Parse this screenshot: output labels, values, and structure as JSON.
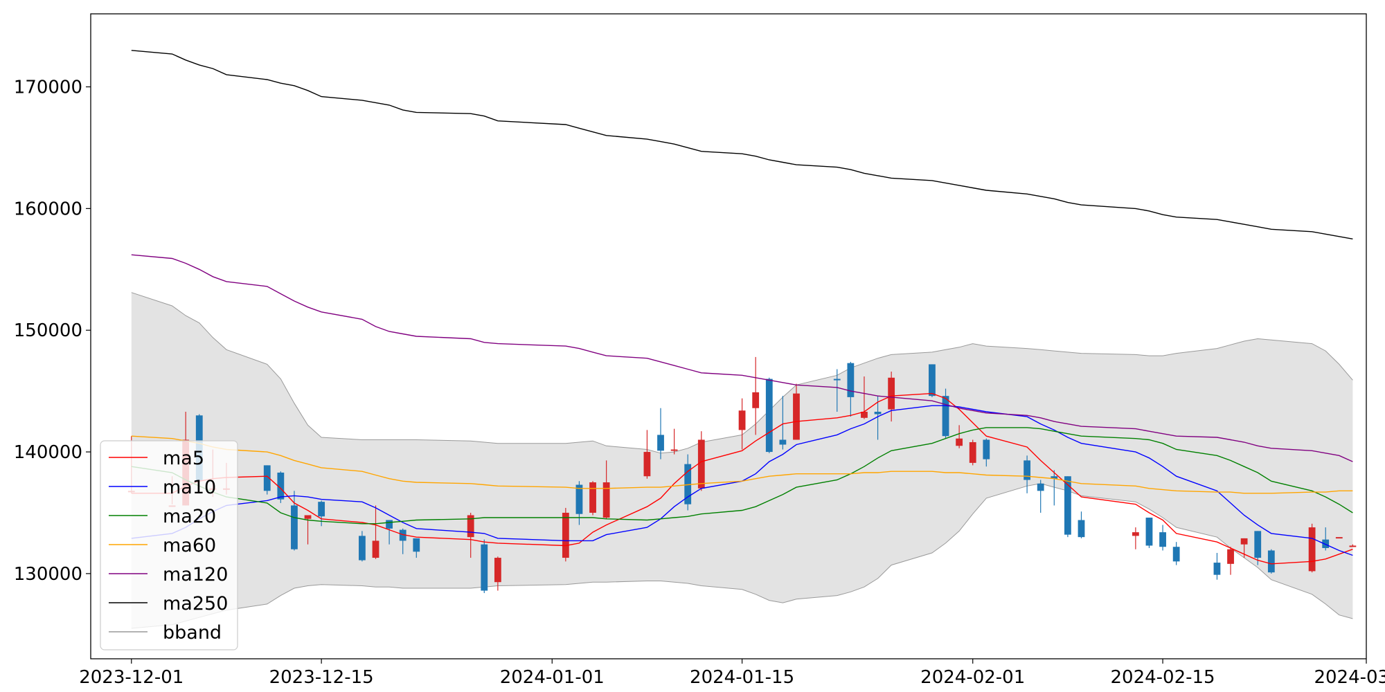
{
  "chart_data": {
    "type": "candlestick",
    "title": "",
    "xlabel": "",
    "ylabel": "",
    "ylim": [
      123000,
      176000
    ],
    "xlim": [
      "2023-11-28",
      "2024-03-01"
    ],
    "grid": false,
    "legend_position": "lower-left",
    "x_ticks": [
      "2023-12-01",
      "2023-12-15",
      "2024-01-01",
      "2024-01-15",
      "2024-02-01",
      "2024-02-15",
      "2024-03-01"
    ],
    "y_ticks": [
      130000,
      140000,
      150000,
      160000,
      170000
    ],
    "y_tick_labels": [
      "130000",
      "140000",
      "150000",
      "160000",
      "170000"
    ],
    "colors": {
      "up": "#d62728",
      "down": "#1f77b4",
      "ma5": "#ff0000",
      "ma10": "#0000ff",
      "ma20": "#008000",
      "ma60": "#ffa500",
      "ma120": "#800080",
      "ma250": "#000000",
      "bband_fill": "#e3e3e3",
      "bband_edge": "#999999"
    },
    "dates": [
      "2023-12-01",
      "2023-12-04",
      "2023-12-05",
      "2023-12-06",
      "2023-12-07",
      "2023-12-08",
      "2023-12-11",
      "2023-12-12",
      "2023-12-13",
      "2023-12-14",
      "2023-12-15",
      "2023-12-18",
      "2023-12-19",
      "2023-12-20",
      "2023-12-21",
      "2023-12-22",
      "2023-12-26",
      "2023-12-27",
      "2023-12-28",
      "2024-01-02",
      "2024-01-03",
      "2024-01-04",
      "2024-01-05",
      "2024-01-08",
      "2024-01-09",
      "2024-01-10",
      "2024-01-11",
      "2024-01-12",
      "2024-01-15",
      "2024-01-16",
      "2024-01-17",
      "2024-01-18",
      "2024-01-19",
      "2024-01-22",
      "2024-01-23",
      "2024-01-24",
      "2024-01-25",
      "2024-01-26",
      "2024-01-29",
      "2024-01-30",
      "2024-01-31",
      "2024-02-01",
      "2024-02-02",
      "2024-02-05",
      "2024-02-06",
      "2024-02-07",
      "2024-02-08",
      "2024-02-09",
      "2024-02-13",
      "2024-02-14",
      "2024-02-15",
      "2024-02-16",
      "2024-02-19",
      "2024-02-20",
      "2024-02-21",
      "2024-02-22",
      "2024-02-23",
      "2024-02-26",
      "2024-02-27",
      "2024-02-28",
      "2024-02-29"
    ],
    "ohlc": [
      [
        136800,
        141300,
        136800,
        136600
      ],
      [
        135600,
        138000,
        135600,
        135700
      ],
      [
        135600,
        143300,
        141000,
        135600
      ],
      [
        143000,
        143100,
        137600,
        137500
      ],
      [
        136900,
        140200,
        137000,
        136300
      ],
      [
        137000,
        139100,
        137000,
        136500
      ],
      [
        138900,
        138900,
        136800,
        136500
      ],
      [
        138300,
        138400,
        136100,
        135800
      ],
      [
        135600,
        136800,
        132000,
        131900
      ],
      [
        134500,
        134800,
        134800,
        132400
      ],
      [
        135900,
        136000,
        134700,
        133900
      ],
      [
        133100,
        133500,
        131100,
        131000
      ],
      [
        131300,
        135600,
        132700,
        131200
      ],
      [
        134400,
        134400,
        133700,
        132400
      ],
      [
        133600,
        133700,
        132700,
        131600
      ],
      [
        132900,
        132900,
        131800,
        131300
      ],
      [
        133000,
        135000,
        134800,
        131300
      ],
      [
        132400,
        132800,
        128600,
        128400
      ],
      [
        129300,
        131400,
        131300,
        128600
      ],
      [
        131300,
        135400,
        135000,
        131000
      ],
      [
        137300,
        137600,
        134900,
        134000
      ],
      [
        135000,
        137600,
        137500,
        134800
      ],
      [
        134600,
        139300,
        137500,
        134500
      ],
      [
        138000,
        141800,
        140000,
        137800
      ],
      [
        141400,
        143600,
        140100,
        139400
      ],
      [
        140200,
        141900,
        140200,
        139800
      ],
      [
        139000,
        139800,
        135700,
        135200
      ],
      [
        137000,
        141700,
        141000,
        136800
      ],
      [
        141800,
        144400,
        143400,
        140200
      ],
      [
        143600,
        147800,
        144900,
        141400
      ],
      [
        146000,
        146100,
        140000,
        139900
      ],
      [
        141000,
        144600,
        140600,
        140200
      ],
      [
        141000,
        145600,
        144800,
        141000
      ],
      [
        146000,
        146800,
        145900,
        143300
      ],
      [
        147300,
        147400,
        144500,
        142900
      ],
      [
        142800,
        146200,
        143300,
        142700
      ],
      [
        143300,
        144600,
        143100,
        141000
      ],
      [
        143500,
        146600,
        146100,
        142500
      ],
      [
        147200,
        147200,
        144600,
        144500
      ],
      [
        144600,
        145200,
        141300,
        141100
      ],
      [
        140500,
        142200,
        141100,
        140300
      ],
      [
        139100,
        141000,
        140800,
        138900
      ],
      [
        141000,
        141100,
        139400,
        138800
      ],
      [
        139300,
        139700,
        137700,
        136600
      ],
      [
        137400,
        137700,
        136800,
        135000
      ],
      [
        138000,
        138500,
        137800,
        135600
      ],
      [
        138000,
        138000,
        133200,
        133000
      ],
      [
        134400,
        135100,
        133000,
        132900
      ],
      [
        133100,
        133800,
        133400,
        132000
      ],
      [
        134600,
        134600,
        132300,
        132100
      ],
      [
        133400,
        134000,
        132200,
        131900
      ],
      [
        132200,
        132600,
        131000,
        130700
      ],
      [
        130900,
        131700,
        129900,
        129500
      ],
      [
        130800,
        132200,
        132000,
        129900
      ],
      [
        132400,
        132900,
        132900,
        131300
      ],
      [
        133500,
        133500,
        131300,
        130700
      ],
      [
        131900,
        132000,
        130100,
        130000
      ],
      [
        130200,
        134100,
        133800,
        130100
      ],
      [
        132800,
        133800,
        132100,
        131900
      ],
      [
        133000,
        133000,
        133000,
        133000
      ],
      [
        132300,
        132400,
        132300,
        132200
      ]
    ],
    "series": [
      {
        "name": "ma5",
        "values": [
          136600,
          136600,
          137200,
          137600,
          137800,
          137900,
          138000,
          137000,
          135800,
          135200,
          134500,
          134200,
          134000,
          133600,
          133200,
          133000,
          132800,
          132600,
          132500,
          132300,
          132500,
          133400,
          134000,
          135500,
          136200,
          137400,
          138400,
          139200,
          140100,
          140900,
          141600,
          142300,
          142500,
          142800,
          143000,
          143300,
          144100,
          144600,
          144800,
          144400,
          143500,
          142400,
          141300,
          140400,
          139300,
          138300,
          137300,
          136300,
          135700,
          135000,
          134400,
          133300,
          132600,
          132100,
          131600,
          131100,
          130800,
          131000,
          131200,
          131600,
          132000
        ]
      },
      {
        "name": "ma10",
        "values": [
          132900,
          133300,
          133800,
          134500,
          135100,
          135600,
          136000,
          136300,
          136400,
          136300,
          136100,
          135900,
          135400,
          134800,
          134200,
          133700,
          133400,
          133300,
          132900,
          132700,
          132700,
          132700,
          133200,
          133800,
          134500,
          135500,
          136300,
          137000,
          137600,
          138200,
          139200,
          139800,
          140600,
          141400,
          141900,
          142300,
          142900,
          143400,
          143800,
          143800,
          143700,
          143500,
          143300,
          142900,
          142300,
          141800,
          141200,
          140700,
          140000,
          139500,
          138800,
          138000,
          136800,
          135800,
          134800,
          134000,
          133300,
          132900,
          132400,
          131900,
          131500
        ]
      },
      {
        "name": "ma20",
        "values": [
          138800,
          138300,
          137700,
          137200,
          136700,
          136300,
          135800,
          135000,
          134600,
          134400,
          134300,
          134100,
          134100,
          134200,
          134300,
          134400,
          134500,
          134600,
          134600,
          134600,
          134600,
          134600,
          134500,
          134400,
          134500,
          134600,
          134700,
          134900,
          135200,
          135500,
          136000,
          136500,
          137100,
          137700,
          138200,
          138800,
          139500,
          140100,
          140700,
          141100,
          141500,
          141800,
          142000,
          142000,
          141900,
          141700,
          141500,
          141300,
          141100,
          141000,
          140700,
          140200,
          139700,
          139300,
          138800,
          138300,
          137600,
          136800,
          136300,
          135700,
          135000
        ]
      },
      {
        "name": "ma60",
        "values": [
          141300,
          141100,
          140900,
          140700,
          140400,
          140200,
          140000,
          139700,
          139300,
          139000,
          138700,
          138400,
          138100,
          137800,
          137600,
          137500,
          137400,
          137300,
          137200,
          137100,
          137000,
          137000,
          137000,
          137100,
          137100,
          137200,
          137300,
          137400,
          137600,
          137800,
          138000,
          138100,
          138200,
          138200,
          138200,
          138300,
          138300,
          138400,
          138400,
          138300,
          138300,
          138200,
          138100,
          138000,
          137900,
          137800,
          137600,
          137400,
          137200,
          137000,
          136900,
          136800,
          136700,
          136700,
          136600,
          136600,
          136600,
          136700,
          136700,
          136800,
          136800
        ]
      },
      {
        "name": "ma120",
        "values": [
          156200,
          155900,
          155500,
          155000,
          154400,
          154000,
          153600,
          153000,
          152400,
          151900,
          151500,
          150900,
          150300,
          149900,
          149700,
          149500,
          149300,
          149000,
          148900,
          148700,
          148500,
          148200,
          147900,
          147700,
          147400,
          147100,
          146800,
          146500,
          146300,
          146100,
          145900,
          145700,
          145500,
          145300,
          145000,
          144800,
          144600,
          144500,
          144200,
          143900,
          143600,
          143400,
          143200,
          143000,
          142800,
          142500,
          142300,
          142100,
          141900,
          141700,
          141500,
          141300,
          141200,
          141000,
          140800,
          140500,
          140300,
          140100,
          139900,
          139700,
          139200
        ]
      },
      {
        "name": "ma250",
        "values": [
          173000,
          172700,
          172200,
          171800,
          171500,
          171000,
          170600,
          170300,
          170100,
          169700,
          169200,
          168900,
          168700,
          168500,
          168100,
          167900,
          167800,
          167600,
          167200,
          166900,
          166600,
          166300,
          166000,
          165700,
          165500,
          165300,
          165000,
          164700,
          164500,
          164300,
          164000,
          163800,
          163600,
          163400,
          163200,
          162900,
          162700,
          162500,
          162300,
          162100,
          161900,
          161700,
          161500,
          161200,
          161000,
          160800,
          160500,
          160300,
          160000,
          159800,
          159500,
          159300,
          159100,
          158900,
          158700,
          158500,
          158300,
          158100,
          157900,
          157700,
          157500
        ]
      }
    ],
    "bband_upper": [
      153100,
      152000,
      151200,
      150600,
      149400,
      148400,
      147200,
      146000,
      144000,
      142200,
      141200,
      141000,
      141000,
      141000,
      141000,
      141000,
      140900,
      140800,
      140700,
      140700,
      140800,
      140900,
      140500,
      140200,
      139900,
      140000,
      140300,
      140800,
      141400,
      142300,
      143400,
      144500,
      145500,
      146300,
      146900,
      147300,
      147700,
      148000,
      148200,
      148400,
      148600,
      148900,
      148700,
      148500,
      148400,
      148300,
      148200,
      148100,
      148000,
      147900,
      147900,
      148100,
      148500,
      148800,
      149100,
      149300,
      149200,
      148900,
      148300,
      147200,
      145900
    ],
    "bband_lower": [
      125500,
      125800,
      126100,
      126400,
      126700,
      127000,
      127500,
      128200,
      128800,
      129000,
      129100,
      129000,
      128900,
      128900,
      128800,
      128800,
      128800,
      128900,
      129000,
      129100,
      129200,
      129300,
      129300,
      129400,
      129400,
      129300,
      129200,
      129000,
      128700,
      128300,
      127800,
      127600,
      127900,
      128200,
      128500,
      128900,
      129600,
      130700,
      131700,
      132500,
      133500,
      134900,
      136200,
      137200,
      137400,
      137100,
      136800,
      136400,
      135900,
      135300,
      134600,
      133800,
      133000,
      132100,
      131300,
      130500,
      129500,
      128300,
      127500,
      126600,
      126300
    ]
  }
}
